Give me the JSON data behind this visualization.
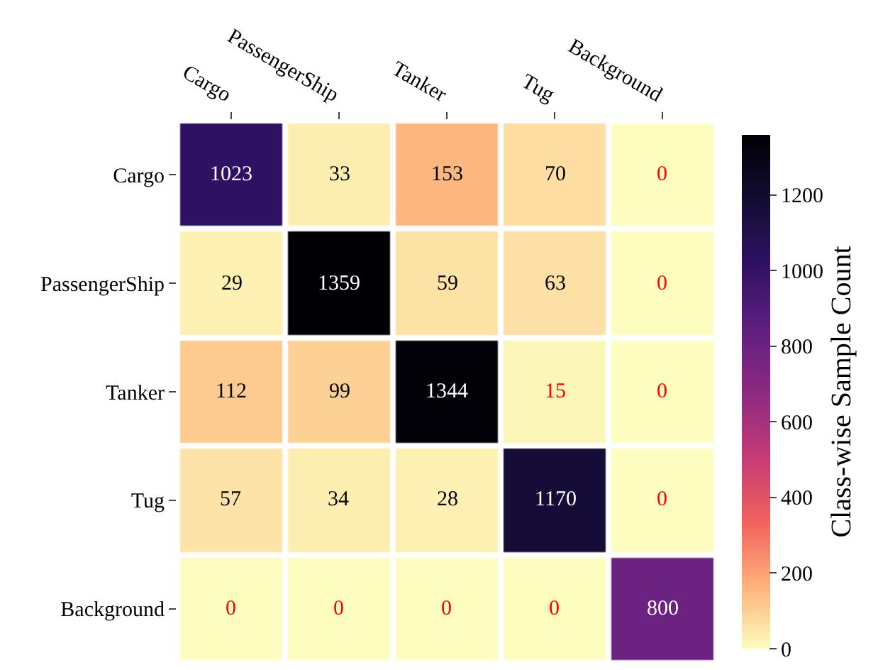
{
  "chart_data": {
    "type": "heatmap",
    "clabel": "Class-wise Sample Count",
    "categories": [
      "Cargo",
      "PassengerShip",
      "Tanker",
      "Tug",
      "Background"
    ],
    "y_categories": [
      "Cargo",
      "PassengerShip",
      "Tanker",
      "Tug",
      "Background"
    ],
    "cells": [
      [
        1023,
        33,
        153,
        70,
        0
      ],
      [
        29,
        1359,
        59,
        63,
        0
      ],
      [
        112,
        99,
        1344,
        15,
        0
      ],
      [
        57,
        34,
        28,
        1170,
        0
      ],
      [
        0,
        0,
        0,
        0,
        800
      ]
    ],
    "data_labels": true,
    "clim": [
      0,
      1359
    ],
    "cticks": [
      0,
      200,
      400,
      600,
      800,
      1000,
      1200
    ]
  }
}
